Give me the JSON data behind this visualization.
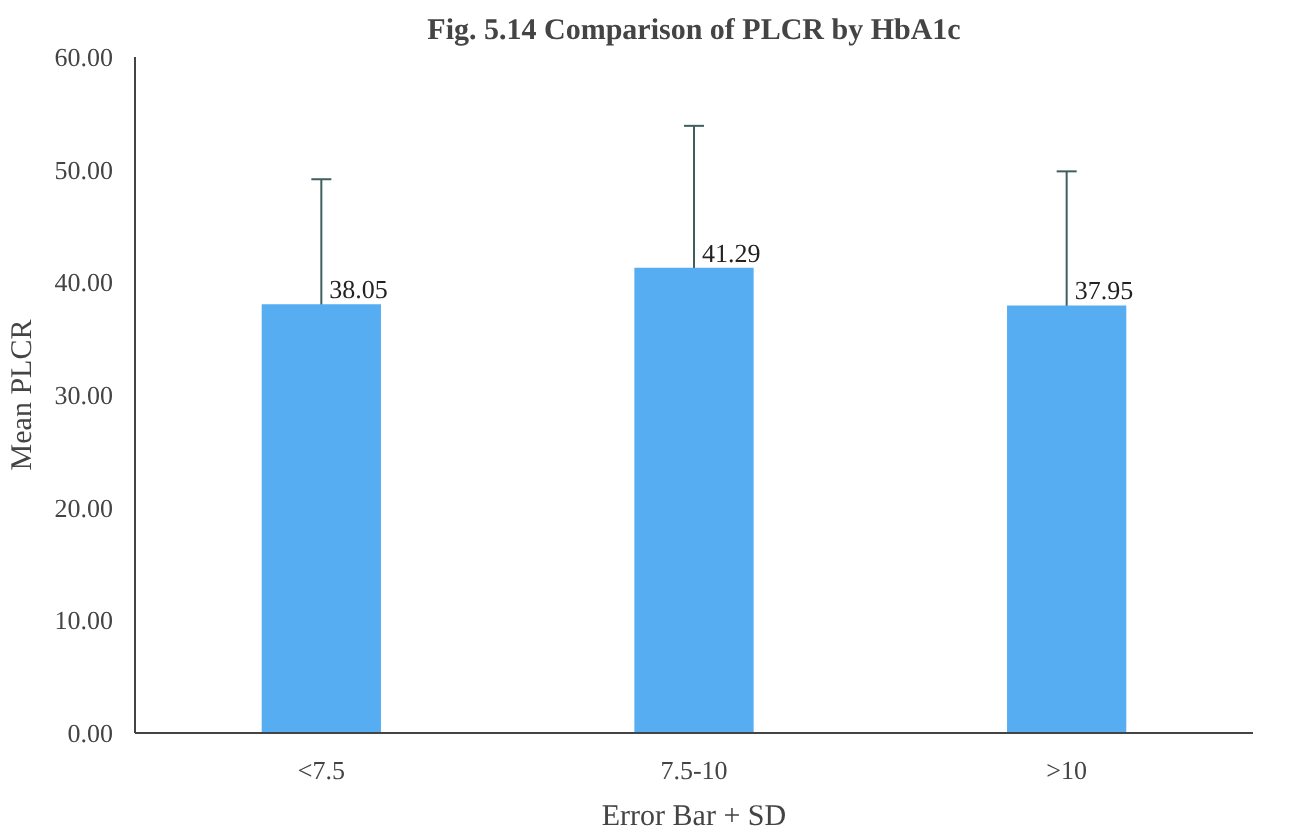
{
  "chart_data": {
    "type": "bar",
    "title": "Fig. 5.14 Comparison of PLCR by HbA1c",
    "xlabel": "Error Bar + SD",
    "ylabel": "Mean PLCR",
    "categories": [
      "<7.5",
      "7.5-10",
      ">10"
    ],
    "values": [
      38.05,
      41.29,
      37.95
    ],
    "color": "#56adf2",
    "errors": [
      11.1,
      12.6,
      11.9
    ],
    "ylim": [
      0,
      60
    ],
    "yticks": [
      {
        "value": 0,
        "label": "0.00"
      },
      {
        "value": 10,
        "label": "10.00"
      },
      {
        "value": 20,
        "label": "20.00"
      },
      {
        "value": 30,
        "label": "30.00"
      },
      {
        "value": 40,
        "label": "40.00"
      },
      {
        "value": 50,
        "label": "50.00"
      },
      {
        "value": 60,
        "label": "60.00"
      }
    ],
    "data_labels": true,
    "grid": false
  }
}
